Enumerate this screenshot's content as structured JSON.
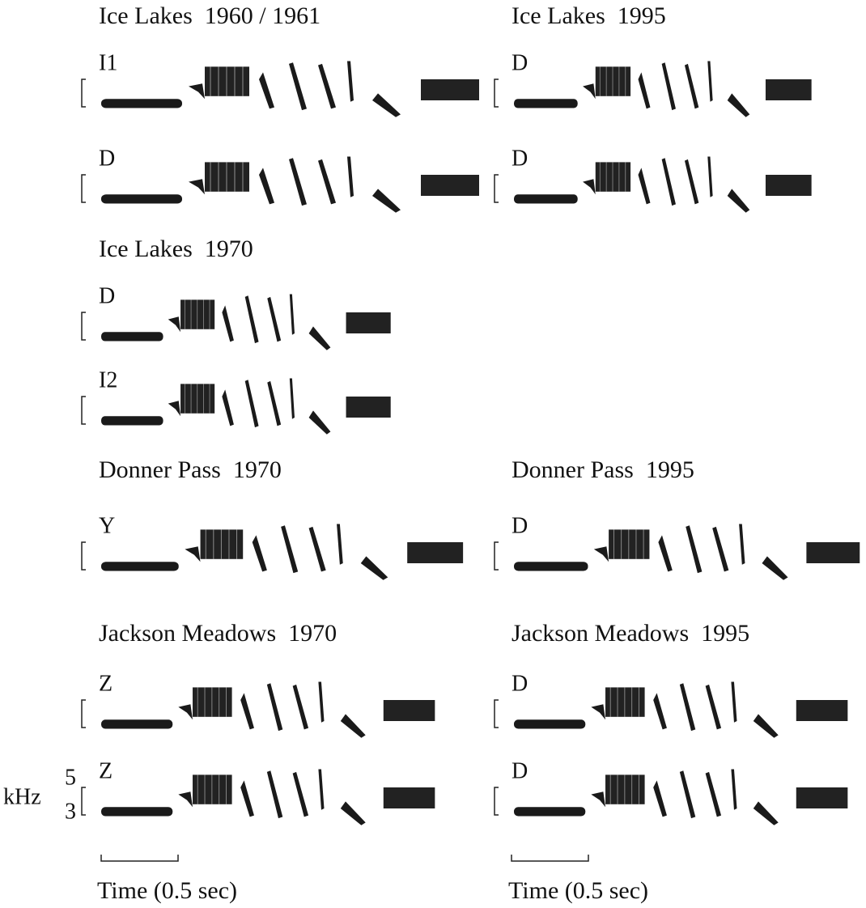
{
  "panels": [
    {
      "title": "Ice Lakes  1960 / 1961",
      "songs": [
        "I1",
        "D"
      ]
    },
    {
      "title": "Ice Lakes  1995",
      "songs": [
        "D",
        "D"
      ]
    },
    {
      "title": "Ice Lakes  1970",
      "songs": [
        "D",
        "I2"
      ]
    },
    {
      "title": "Donner Pass  1970",
      "songs": [
        "Y"
      ]
    },
    {
      "title": "Donner Pass  1995",
      "songs": [
        "D"
      ]
    },
    {
      "title": "Jackson Meadows  1970",
      "songs": [
        "Z",
        "Z"
      ]
    },
    {
      "title": "Jackson Meadows  1995",
      "songs": [
        "D",
        "D"
      ]
    }
  ],
  "frequency_axis": {
    "unit": "kHz",
    "ticks": [
      "5",
      "3"
    ]
  },
  "time_scale": [
    "Time (0.5 sec)",
    "Time (0.5 sec)"
  ]
}
